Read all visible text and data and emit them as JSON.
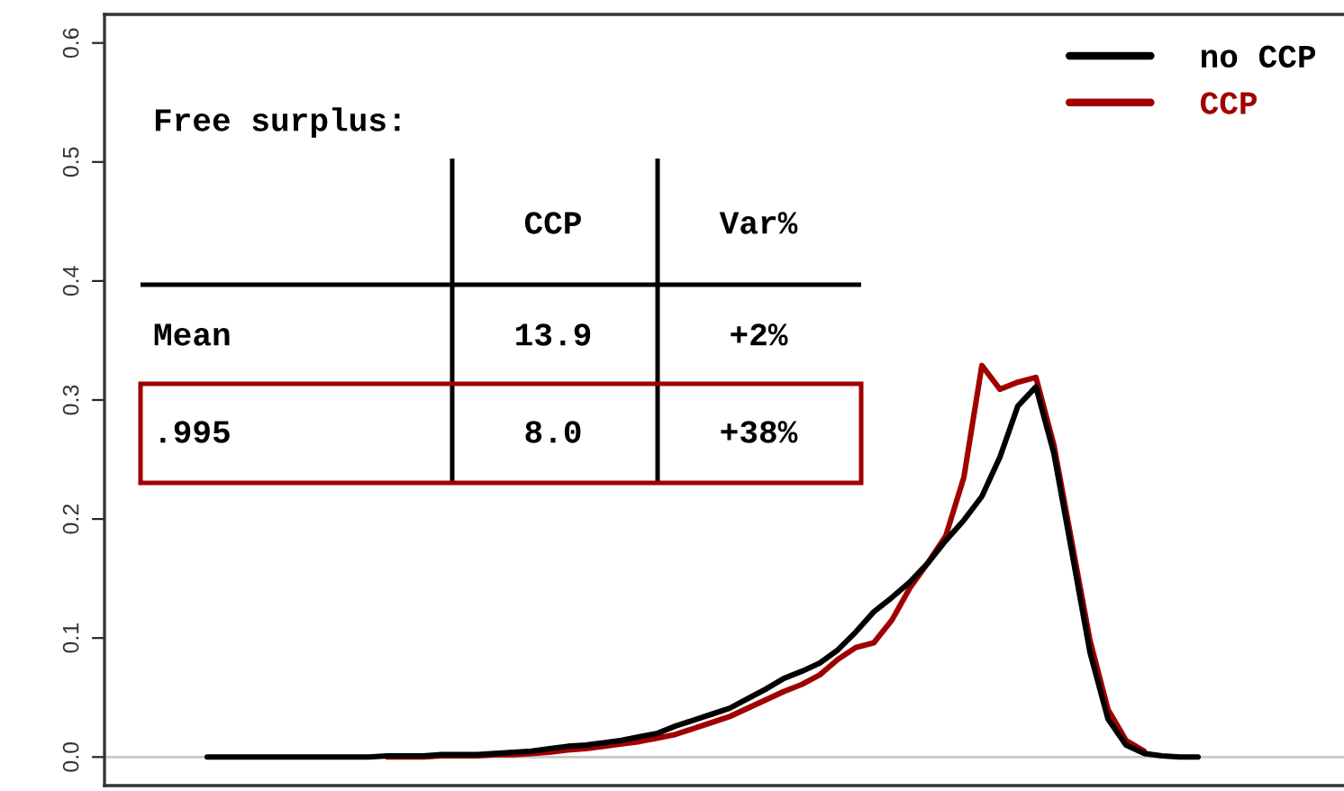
{
  "chart_data": {
    "type": "line",
    "categories": [
      null,
      null,
      null,
      null,
      null,
      null,
      null,
      null,
      null,
      null,
      null,
      null,
      null,
      null,
      null,
      null,
      null,
      null,
      null,
      null,
      null,
      null,
      null,
      null,
      null,
      null,
      null,
      null,
      null,
      null,
      null,
      null,
      null,
      null,
      null,
      null,
      null,
      null,
      null,
      null,
      null,
      null,
      null,
      null,
      null,
      null,
      null,
      null,
      null,
      null,
      null,
      null,
      null,
      null,
      null,
      null
    ],
    "series": [
      {
        "name": "no CCP",
        "color": "#000000",
        "values": [
          0,
          0,
          0,
          0,
          0,
          0,
          0,
          0,
          0,
          0,
          0.001,
          0.001,
          0.001,
          0.002,
          0.002,
          0.002,
          0.003,
          0.004,
          0.005,
          0.007,
          0.009,
          0.01,
          0.012,
          0.014,
          0.017,
          0.02,
          0.026,
          0.031,
          0.036,
          0.041,
          0.049,
          0.057,
          0.066,
          0.072,
          0.079,
          0.09,
          0.105,
          0.122,
          0.134,
          0.147,
          0.163,
          0.182,
          0.199,
          0.219,
          0.252,
          0.295,
          0.311,
          0.255,
          0.172,
          0.088,
          0.032,
          0.01,
          0.003,
          0.001,
          0,
          0
        ]
      },
      {
        "name": "CCP",
        "color": "#a00000",
        "values": [
          null,
          null,
          null,
          null,
          null,
          null,
          null,
          null,
          null,
          null,
          0,
          0,
          0,
          0.001,
          0.001,
          0.001,
          0.002,
          0.002,
          0.003,
          0.004,
          0.006,
          0.007,
          0.009,
          0.011,
          0.013,
          0.016,
          0.019,
          0.024,
          0.029,
          0.034,
          0.041,
          0.048,
          0.055,
          0.061,
          0.069,
          0.082,
          0.092,
          0.096,
          0.115,
          0.142,
          0.163,
          0.186,
          0.235,
          0.329,
          0.309,
          0.315,
          0.319,
          0.262,
          0.18,
          0.098,
          0.04,
          0.014,
          0.005,
          null,
          null,
          null
        ]
      }
    ],
    "ylim": [
      -0.024,
      0.624
    ],
    "yticks": [
      {
        "value": 0,
        "label": "0.0"
      },
      0.1,
      0.2,
      0.3,
      0.4,
      0.5,
      0.6
    ],
    "tick_labels": "y",
    "grid": false,
    "legend": "top right",
    "ref_lines": [
      {
        "axis": "y",
        "value": 0,
        "color": "#c8c8c8"
      }
    ],
    "annotations": [
      "Free surplus:",
      "CCP",
      "Var%",
      "Mean",
      "13.9",
      "+2%",
      ".995",
      "8.0",
      "+38%"
    ]
  }
}
